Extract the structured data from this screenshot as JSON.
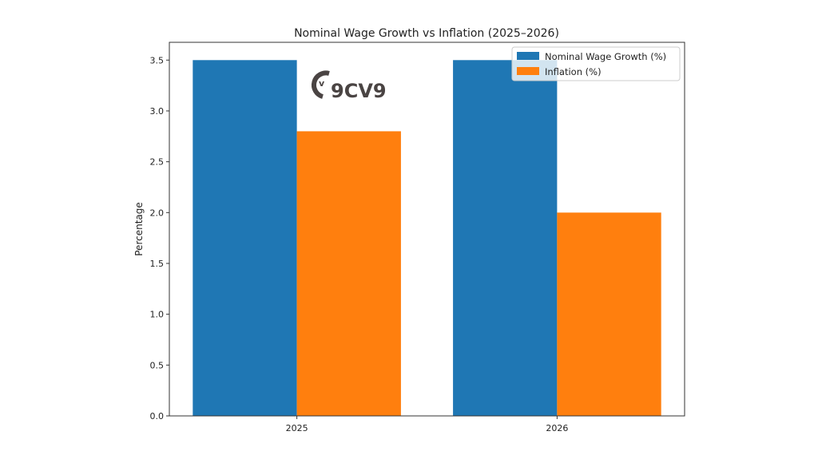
{
  "chart_data": {
    "type": "bar",
    "title": "Nominal Wage Growth vs Inflation (2025–2026)",
    "xlabel": "",
    "ylabel": "Percentage",
    "categories": [
      "2025",
      "2026"
    ],
    "series": [
      {
        "name": "Nominal Wage Growth (%)",
        "values": [
          3.5,
          3.5
        ],
        "color": "#1f77b4"
      },
      {
        "name": "Inflation (%)",
        "values": [
          2.8,
          2.0
        ],
        "color": "#ff7f0e"
      }
    ],
    "ylim": [
      0,
      3.675
    ],
    "yticks": [
      "0.0",
      "0.5",
      "1.0",
      "1.5",
      "2.0",
      "2.5",
      "3.0",
      "3.5"
    ],
    "grid": false,
    "legend_position": "top-right"
  },
  "watermark": {
    "text": "9CV9"
  }
}
